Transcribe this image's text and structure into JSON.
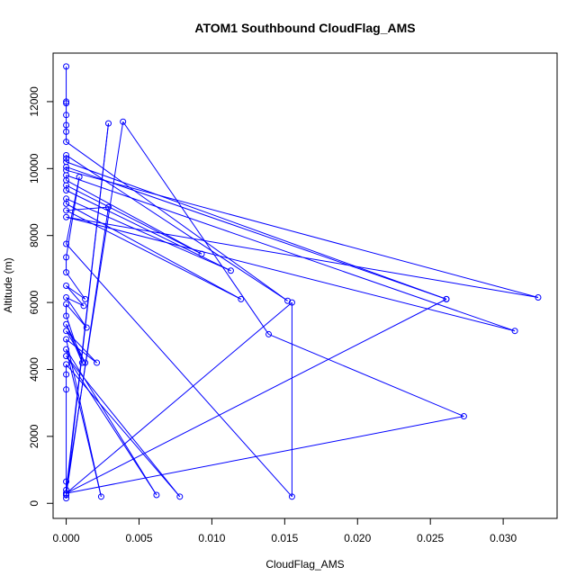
{
  "chart_data": {
    "type": "line",
    "title": "ATOM1 Southbound CloudFlag_AMS",
    "xlabel": "CloudFlag_AMS",
    "ylabel": "Altitude (m)",
    "xlim": [
      -0.0009,
      0.0337
    ],
    "ylim": [
      -450,
      13450
    ],
    "xticks": [
      "0.000",
      "0.005",
      "0.010",
      "0.015",
      "0.020",
      "0.025",
      "0.030"
    ],
    "xtick_values": [
      0,
      0.005,
      0.01,
      0.015,
      0.02,
      0.025,
      0.03
    ],
    "yticks": [
      "0",
      "2000",
      "4000",
      "6000",
      "8000",
      "10000",
      "12000"
    ],
    "ytick_values": [
      0,
      2000,
      4000,
      6000,
      8000,
      10000,
      12000
    ],
    "grid": false,
    "legend": "none",
    "series": [
      {
        "color": "#0000ff",
        "marker": "open-circle",
        "points": [
          [
            0,
            13050
          ],
          [
            0,
            12000
          ],
          [
            0,
            11950
          ],
          [
            0,
            11600
          ],
          [
            0,
            11300
          ],
          [
            0,
            11100
          ],
          [
            0,
            10800
          ],
          [
            0.0152,
            6050
          ],
          [
            0,
            10400
          ],
          [
            0,
            10300
          ],
          [
            0,
            10200
          ],
          [
            0.0261,
            6100
          ],
          [
            0,
            10050
          ],
          [
            0,
            9950
          ],
          [
            0.0324,
            6150
          ],
          [
            0,
            8550
          ],
          [
            0.0308,
            5150
          ],
          [
            0,
            9800
          ],
          [
            0,
            9650
          ],
          [
            0.0093,
            7450
          ],
          [
            0,
            9500
          ],
          [
            0,
            9350
          ],
          [
            0.0113,
            6950
          ],
          [
            0,
            9100
          ],
          [
            0,
            8950
          ],
          [
            0.012,
            6100
          ],
          [
            0,
            8750
          ],
          [
            0.0029,
            8850
          ],
          [
            0,
            250
          ],
          [
            0.0029,
            11350
          ],
          [
            0,
            400
          ],
          [
            0.0039,
            11400
          ],
          [
            0.0139,
            5050
          ],
          [
            0.0273,
            2600
          ],
          [
            0,
            300
          ],
          [
            0.0155,
            6000
          ],
          [
            0.0155,
            200
          ],
          [
            0,
            7750
          ],
          [
            0.0009,
            9750
          ],
          [
            0,
            7350
          ],
          [
            0,
            6900
          ],
          [
            0.0013,
            6100
          ],
          [
            0,
            6500
          ],
          [
            0.0012,
            5900
          ],
          [
            0,
            6150
          ],
          [
            0.0014,
            5250
          ],
          [
            0,
            5950
          ],
          [
            0,
            5600
          ],
          [
            0.0011,
            4200
          ],
          [
            0,
            5350
          ],
          [
            0.0013,
            4200
          ],
          [
            0,
            5150
          ],
          [
            0.0021,
            4200
          ],
          [
            0,
            4900
          ],
          [
            0.0024,
            200
          ],
          [
            0,
            4600
          ],
          [
            0.0062,
            250
          ],
          [
            0,
            4400
          ],
          [
            0.0078,
            200
          ],
          [
            0,
            4150
          ],
          [
            0,
            3850
          ],
          [
            0,
            3400
          ],
          [
            0,
            650
          ],
          [
            0,
            150
          ],
          [
            0,
            250
          ],
          [
            0,
            300
          ],
          [
            0.0261,
            6100
          ]
        ]
      }
    ]
  }
}
